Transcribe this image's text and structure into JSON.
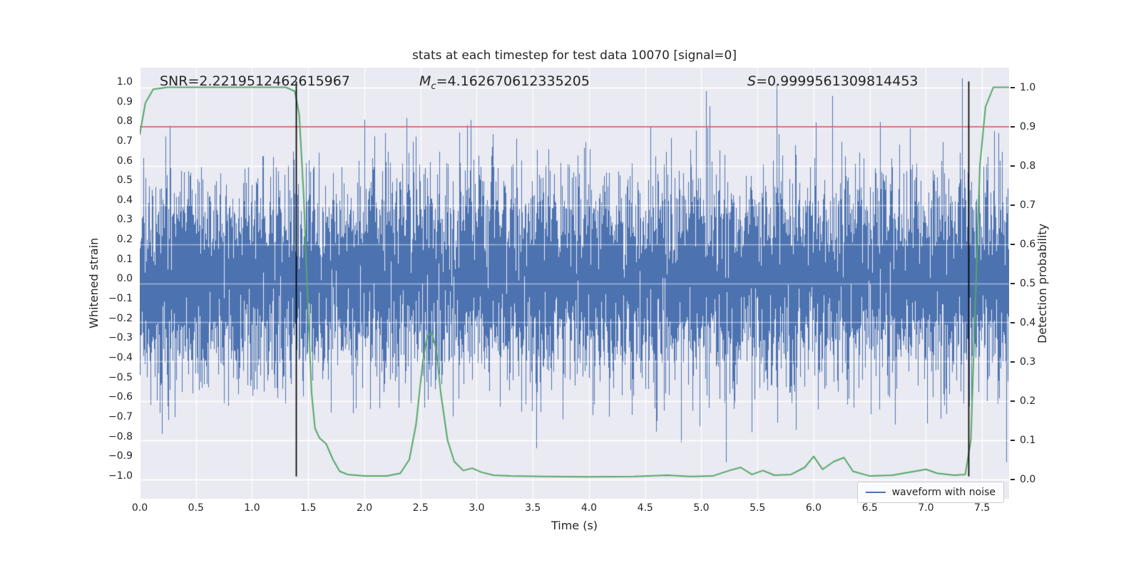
{
  "annotations": {
    "snr": "SNR=2.2219512462615967",
    "chirp_mass_symbol": "M",
    "chirp_mass_subscript": "c",
    "chirp_mass_value": "=4.162670612335205",
    "s_symbol": "S",
    "s_value": "=0.9999561309814453"
  },
  "chart_data": {
    "type": "line",
    "title": "stats at each timestep for test data 10070 [signal=0]",
    "xlabel": "Time (s)",
    "ylabel_left": "Whitened strain",
    "ylabel_right": "Detection probability",
    "xlim": [
      0,
      7.74
    ],
    "ylim_left": [
      -1.116,
      1.072
    ],
    "ylim_right": [
      -0.05,
      1.05
    ],
    "annotations_text": [
      "SNR=2.2219512462615967",
      "M_c=4.162670612335205",
      "S=0.9999561309814453"
    ],
    "x_ticks": {
      "values": [
        0.0,
        0.5,
        1.0,
        1.5,
        2.0,
        2.5,
        3.0,
        3.5,
        4.0,
        4.5,
        5.0,
        5.5,
        6.0,
        6.5,
        7.0,
        7.5
      ],
      "labels": [
        "0.0",
        "0.5",
        "1.0",
        "1.5",
        "2.0",
        "2.5",
        "3.0",
        "3.5",
        "4.0",
        "4.5",
        "5.0",
        "5.5",
        "6.0",
        "6.5",
        "7.0",
        "7.5"
      ]
    },
    "left_ticks": {
      "values": [
        1.0,
        0.9,
        0.8,
        0.7,
        0.6,
        0.5,
        0.4,
        0.3,
        0.2,
        0.1,
        0.0,
        -0.1,
        -0.2,
        -0.3,
        -0.4,
        -0.5,
        -0.6,
        -0.7,
        -0.8,
        -0.9,
        -1.0
      ],
      "labels": [
        "1.0",
        "0.9",
        "0.8",
        "0.7",
        "0.6",
        "0.5",
        "0.4",
        "0.3",
        "0.2",
        "0.1",
        "0.0",
        "−0.1",
        "−0.2",
        "−0.3",
        "−0.4",
        "−0.5",
        "−0.6",
        "−0.7",
        "−0.8",
        "−0.9",
        "−1.0"
      ]
    },
    "right_ticks": {
      "values": [
        1.0,
        0.9,
        0.8,
        0.7,
        0.6,
        0.5,
        0.4,
        0.3,
        0.2,
        0.1,
        0.0
      ],
      "labels": [
        "1.0",
        "0.9",
        "0.8",
        "0.7",
        "0.6",
        "0.5",
        "0.4",
        "0.3",
        "0.2",
        "0.1",
        "0.0"
      ]
    },
    "threshold_line": {
      "axis": "right",
      "value": 0.9,
      "color": "#c44e52"
    },
    "vlines": {
      "values": [
        1.39,
        7.38
      ],
      "color": "#000000",
      "y_span_left_axis": [
        -1.0,
        1.0
      ]
    },
    "series": [
      {
        "name": "waveform with noise",
        "plot": "noise-band",
        "axis": "left",
        "color": "#4c72b0",
        "n_samples": 8192,
        "sigma": 0.25,
        "spike_probability": 0.004,
        "spike_min": 0.55,
        "spike_max": 1.03,
        "clip": 1.02,
        "seed": 1234
      },
      {
        "name": "detection probability",
        "plot": "line",
        "axis": "right",
        "color": "#55a868",
        "points": [
          [
            0,
            0.88
          ],
          [
            0.05,
            0.96
          ],
          [
            0.12,
            0.995
          ],
          [
            0.25,
            1.0
          ],
          [
            1.3,
            1.0
          ],
          [
            1.38,
            0.99
          ],
          [
            1.42,
            0.93
          ],
          [
            1.46,
            0.72
          ],
          [
            1.5,
            0.42
          ],
          [
            1.53,
            0.22
          ],
          [
            1.56,
            0.13
          ],
          [
            1.6,
            0.105
          ],
          [
            1.66,
            0.09
          ],
          [
            1.72,
            0.05
          ],
          [
            1.78,
            0.02
          ],
          [
            1.85,
            0.012
          ],
          [
            2.0,
            0.008
          ],
          [
            2.2,
            0.008
          ],
          [
            2.32,
            0.015
          ],
          [
            2.4,
            0.05
          ],
          [
            2.46,
            0.14
          ],
          [
            2.52,
            0.3
          ],
          [
            2.56,
            0.365
          ],
          [
            2.6,
            0.375
          ],
          [
            2.64,
            0.33
          ],
          [
            2.68,
            0.22
          ],
          [
            2.74,
            0.1
          ],
          [
            2.8,
            0.045
          ],
          [
            2.88,
            0.022
          ],
          [
            2.96,
            0.028
          ],
          [
            3.04,
            0.018
          ],
          [
            3.15,
            0.01
          ],
          [
            3.3,
            0.008
          ],
          [
            3.6,
            0.007
          ],
          [
            4.0,
            0.006
          ],
          [
            4.4,
            0.007
          ],
          [
            4.7,
            0.01
          ],
          [
            4.9,
            0.007
          ],
          [
            5.1,
            0.008
          ],
          [
            5.25,
            0.022
          ],
          [
            5.35,
            0.03
          ],
          [
            5.45,
            0.012
          ],
          [
            5.55,
            0.022
          ],
          [
            5.65,
            0.01
          ],
          [
            5.8,
            0.012
          ],
          [
            5.92,
            0.03
          ],
          [
            6.0,
            0.058
          ],
          [
            6.08,
            0.025
          ],
          [
            6.18,
            0.045
          ],
          [
            6.27,
            0.055
          ],
          [
            6.35,
            0.02
          ],
          [
            6.5,
            0.008
          ],
          [
            6.7,
            0.01
          ],
          [
            6.9,
            0.02
          ],
          [
            7.0,
            0.025
          ],
          [
            7.1,
            0.015
          ],
          [
            7.25,
            0.01
          ],
          [
            7.35,
            0.012
          ],
          [
            7.4,
            0.1
          ],
          [
            7.44,
            0.45
          ],
          [
            7.48,
            0.8
          ],
          [
            7.53,
            0.95
          ],
          [
            7.6,
            1.0
          ],
          [
            7.74,
            1.0
          ]
        ]
      }
    ],
    "legend": {
      "label": "waveform with noise",
      "line_color": "#4c72b0",
      "position": "lower right"
    },
    "grid": {
      "color": "#ffffff"
    },
    "background": {
      "figure": "#ffffff",
      "axes": "#eaeaf2"
    },
    "text_color": "#262626"
  }
}
